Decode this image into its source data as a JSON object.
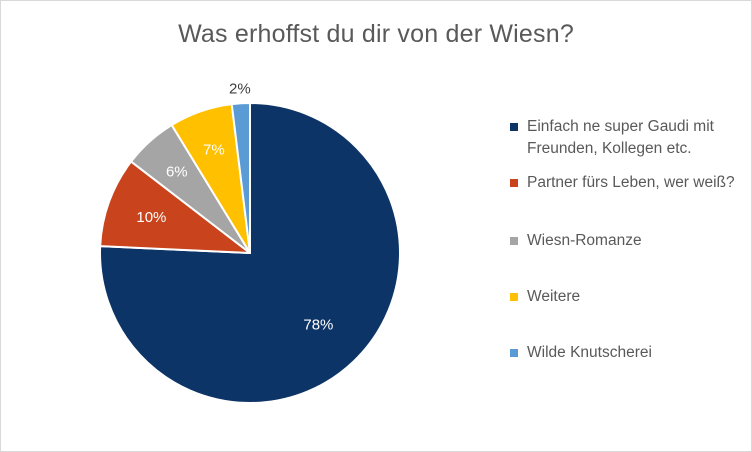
{
  "chart_data": {
    "type": "pie",
    "title": "Was erhoffst du dir von der Wiesn?",
    "slices": [
      {
        "label": "Einfach ne super Gaudi mit Freunden, Kollegen etc.",
        "value": 78,
        "display": "78%",
        "color": "#0d3466"
      },
      {
        "label": "Partner fürs Leben, wer weiß?",
        "value": 10,
        "display": "10%",
        "color": "#c9431d"
      },
      {
        "label": "Wiesn-Romanze",
        "value": 6,
        "display": "6%",
        "color": "#a5a5a5"
      },
      {
        "label": "Weitere",
        "value": 7,
        "display": "7%",
        "color": "#ffc000"
      },
      {
        "label": "Wilde Knutscherei",
        "value": 2,
        "display": "2%",
        "color": "#5b9bd5"
      }
    ],
    "legend_position": "right"
  }
}
